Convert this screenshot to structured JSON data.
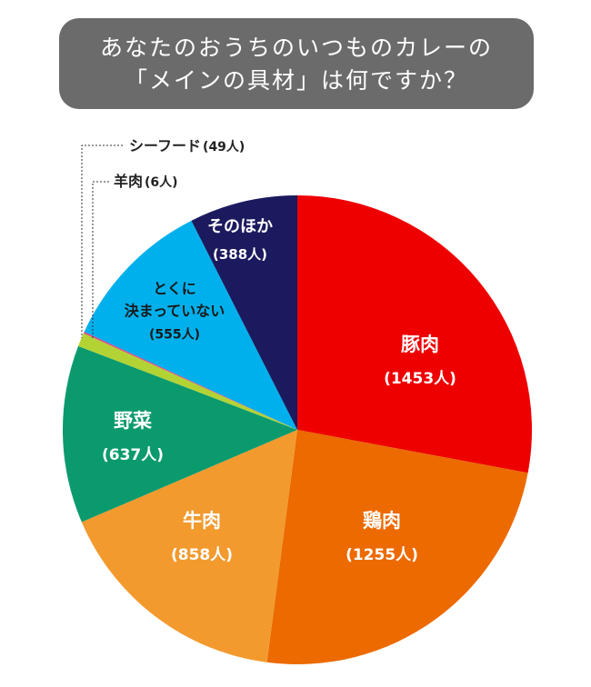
{
  "title": {
    "line1": "あなたのおうちのいつものカレーの",
    "line2": "「メインの具材」は何ですか？"
  },
  "chart_data": {
    "type": "pie",
    "title": "あなたのおうちのいつものカレーの「メインの具材」は何ですか？",
    "start": "12 o'clock",
    "direction": "clockwise",
    "slices": [
      {
        "label": "豚肉",
        "value": 1453,
        "display": "(1453人)",
        "color": "#ee0000",
        "text_color": "#ffffff"
      },
      {
        "label": "鶏肉",
        "value": 1255,
        "display": "(1255人)",
        "color": "#ec6a00",
        "text_color": "#ffffff"
      },
      {
        "label": "牛肉",
        "value": 858,
        "display": "(858人)",
        "color": "#f29a2e",
        "text_color": "#ffffff"
      },
      {
        "label": "野菜",
        "value": 637,
        "display": "(637人)",
        "color": "#0b9a6d",
        "text_color": "#ffffff"
      },
      {
        "label": "シーフード",
        "value": 49,
        "display": "(49人)",
        "color": "#b3d335",
        "text_color": "#222222"
      },
      {
        "label": "羊肉",
        "value": 6,
        "display": "(6人)",
        "color": "#e1448b",
        "text_color": "#222222"
      },
      {
        "label": "とくに決まっていない",
        "label_lines": [
          "とくに",
          "決まっていない"
        ],
        "value": 555,
        "display": "(555人)",
        "color": "#00b0ec",
        "text_color": "#1a1a1a"
      },
      {
        "label": "そのほか",
        "value": 388,
        "display": "(388人)",
        "color": "#1c1a5e",
        "text_color": "#ffffff"
      }
    ]
  }
}
